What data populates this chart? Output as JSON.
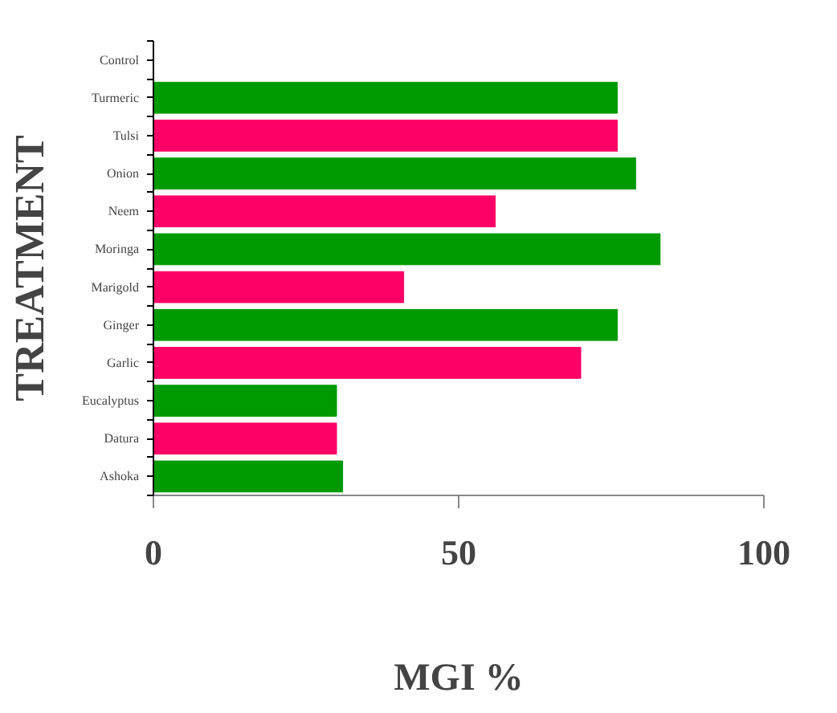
{
  "chart_data": {
    "type": "bar",
    "orientation": "horizontal",
    "xlabel": "MGI %",
    "ylabel": "TREATMENT",
    "categories": [
      "Control",
      "Turmeric",
      "Tulsi",
      "Onion",
      "Neem",
      "Moringa",
      "Marigold",
      "Ginger",
      "Garlic",
      "Eucalyptus",
      "Datura",
      "Ashoka"
    ],
    "values": [
      0,
      76,
      76,
      79,
      56,
      83,
      41,
      76,
      70,
      30,
      30,
      31
    ],
    "colors": [
      "#ff0066",
      "#009900",
      "#ff0066",
      "#009900",
      "#ff0066",
      "#009900",
      "#ff0066",
      "#009900",
      "#ff0066",
      "#009900",
      "#ff0066",
      "#009900"
    ],
    "xlim": [
      0,
      100
    ],
    "xticks": [
      0,
      50,
      100
    ],
    "grid": false
  }
}
